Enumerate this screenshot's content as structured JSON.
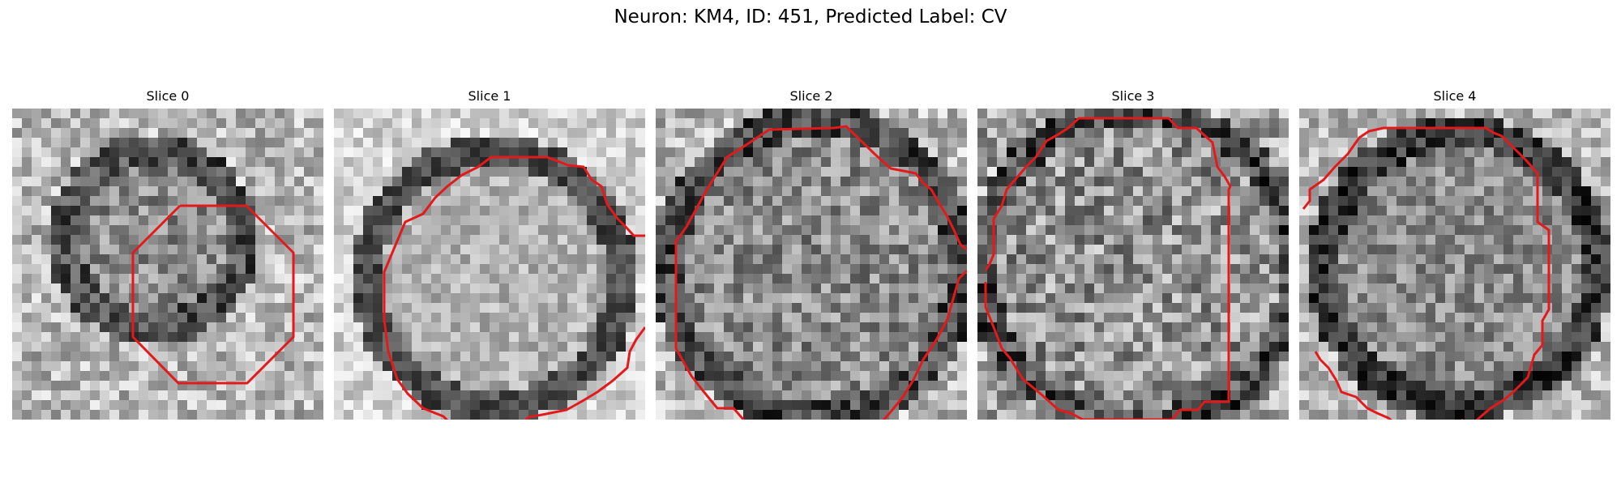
{
  "figure": {
    "suptitle": "Neuron: KM4, ID: 451, Predicted Label: CV"
  },
  "colors": {
    "contour": "#e31a1c",
    "background": "#ffffff",
    "colormap": "grayscale"
  },
  "slices": [
    {
      "title": "Slice 0"
    },
    {
      "title": "Slice 1"
    },
    {
      "title": "Slice 2"
    },
    {
      "title": "Slice 3"
    },
    {
      "title": "Slice 4"
    }
  ]
}
